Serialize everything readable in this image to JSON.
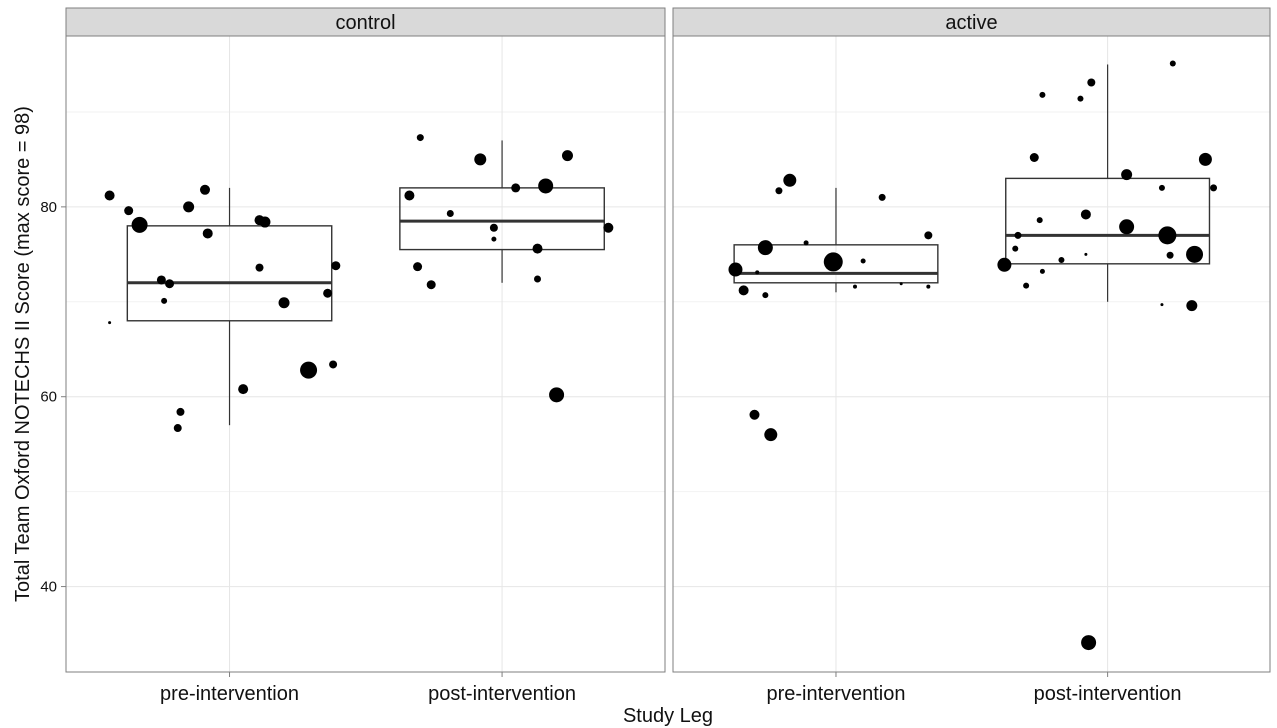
{
  "chart_data": {
    "type": "box",
    "xlabel": "Study Leg",
    "ylabel": "Total Team Oxford NOTECHS II Score (max score = 98)",
    "ylim": [
      31,
      98
    ],
    "yticks": [
      40,
      60,
      80
    ],
    "grid": true,
    "categories": [
      "pre-intervention",
      "post-intervention"
    ],
    "panels": [
      {
        "name": "control",
        "boxes": [
          {
            "category": "pre-intervention",
            "whisker_low": 57,
            "q1": 68,
            "median": 72,
            "q3": 78,
            "whisker_high": 82,
            "points": [
              {
                "dx": -0.44,
                "y": 81.2,
                "r": 5
              },
              {
                "dx": -0.37,
                "y": 79.6,
                "r": 4.5
              },
              {
                "dx": -0.33,
                "y": 78.1,
                "r": 8
              },
              {
                "dx": -0.25,
                "y": 72.3,
                "r": 4.5
              },
              {
                "dx": -0.24,
                "y": 70.1,
                "r": 3
              },
              {
                "dx": -0.22,
                "y": 71.9,
                "r": 4.5
              },
              {
                "dx": -0.15,
                "y": 80.0,
                "r": 5.5
              },
              {
                "dx": -0.09,
                "y": 81.8,
                "r": 5
              },
              {
                "dx": -0.08,
                "y": 77.2,
                "r": 5
              },
              {
                "dx": -0.18,
                "y": 58.4,
                "r": 4
              },
              {
                "dx": -0.19,
                "y": 56.7,
                "r": 4
              },
              {
                "dx": -0.44,
                "y": 67.8,
                "r": 1.5
              },
              {
                "dx": 0.05,
                "y": 60.8,
                "r": 5
              },
              {
                "dx": 0.11,
                "y": 73.6,
                "r": 4
              },
              {
                "dx": 0.11,
                "y": 78.6,
                "r": 5
              },
              {
                "dx": 0.13,
                "y": 78.4,
                "r": 5.5
              },
              {
                "dx": 0.2,
                "y": 69.9,
                "r": 5.5
              },
              {
                "dx": 0.29,
                "y": 62.8,
                "r": 8.5
              },
              {
                "dx": 0.36,
                "y": 70.9,
                "r": 4.5
              },
              {
                "dx": 0.38,
                "y": 63.4,
                "r": 4
              },
              {
                "dx": 0.39,
                "y": 73.8,
                "r": 4.5
              }
            ]
          },
          {
            "category": "post-intervention",
            "whisker_low": 72,
            "q1": 75.5,
            "median": 78.5,
            "q3": 82,
            "whisker_high": 87,
            "points": [
              {
                "dx": -0.34,
                "y": 81.2,
                "r": 5
              },
              {
                "dx": -0.31,
                "y": 73.7,
                "r": 4.5
              },
              {
                "dx": -0.3,
                "y": 87.3,
                "r": 3.5
              },
              {
                "dx": -0.26,
                "y": 71.8,
                "r": 4.5
              },
              {
                "dx": -0.19,
                "y": 79.3,
                "r": 3.5
              },
              {
                "dx": -0.08,
                "y": 85.0,
                "r": 6
              },
              {
                "dx": -0.03,
                "y": 77.8,
                "r": 4
              },
              {
                "dx": -0.03,
                "y": 76.6,
                "r": 2.5
              },
              {
                "dx": 0.05,
                "y": 82.0,
                "r": 4.5
              },
              {
                "dx": 0.13,
                "y": 75.6,
                "r": 5
              },
              {
                "dx": 0.13,
                "y": 72.4,
                "r": 3.5
              },
              {
                "dx": 0.16,
                "y": 82.2,
                "r": 7.5
              },
              {
                "dx": 0.2,
                "y": 60.2,
                "r": 7.5
              },
              {
                "dx": 0.24,
                "y": 85.4,
                "r": 5.5
              },
              {
                "dx": 0.39,
                "y": 77.8,
                "r": 5
              }
            ]
          }
        ]
      },
      {
        "name": "active",
        "boxes": [
          {
            "category": "pre-intervention",
            "whisker_low": 71,
            "q1": 72,
            "median": 73,
            "q3": 76,
            "whisker_high": 82,
            "points": [
              {
                "dx": -0.37,
                "y": 73.4,
                "r": 7
              },
              {
                "dx": -0.34,
                "y": 71.2,
                "r": 5
              },
              {
                "dx": -0.3,
                "y": 58.1,
                "r": 5
              },
              {
                "dx": -0.29,
                "y": 73.1,
                "r": 2
              },
              {
                "dx": -0.26,
                "y": 75.7,
                "r": 7.5
              },
              {
                "dx": -0.26,
                "y": 70.7,
                "r": 3
              },
              {
                "dx": -0.24,
                "y": 56.0,
                "r": 6.5
              },
              {
                "dx": -0.21,
                "y": 81.7,
                "r": 3.5
              },
              {
                "dx": -0.17,
                "y": 82.8,
                "r": 6.5
              },
              {
                "dx": -0.11,
                "y": 76.2,
                "r": 2.5
              },
              {
                "dx": -0.01,
                "y": 74.2,
                "r": 9.5
              },
              {
                "dx": 0.1,
                "y": 74.3,
                "r": 2.5
              },
              {
                "dx": 0.07,
                "y": 71.6,
                "r": 2
              },
              {
                "dx": 0.17,
                "y": 81.0,
                "r": 3.5
              },
              {
                "dx": 0.24,
                "y": 71.9,
                "r": 1.5
              },
              {
                "dx": 0.34,
                "y": 77.0,
                "r": 4
              },
              {
                "dx": 0.34,
                "y": 71.6,
                "r": 2
              }
            ]
          },
          {
            "category": "post-intervention",
            "whisker_low": 70,
            "q1": 74,
            "median": 77,
            "q3": 83,
            "whisker_high": 95,
            "points": [
              {
                "dx": -0.38,
                "y": 73.9,
                "r": 7
              },
              {
                "dx": -0.34,
                "y": 75.6,
                "r": 3
              },
              {
                "dx": -0.33,
                "y": 77.0,
                "r": 3.5
              },
              {
                "dx": -0.3,
                "y": 71.7,
                "r": 3
              },
              {
                "dx": -0.27,
                "y": 85.2,
                "r": 4.5
              },
              {
                "dx": -0.25,
                "y": 78.6,
                "r": 3
              },
              {
                "dx": -0.24,
                "y": 73.2,
                "r": 2.5
              },
              {
                "dx": -0.24,
                "y": 91.8,
                "r": 3
              },
              {
                "dx": -0.17,
                "y": 74.4,
                "r": 3
              },
              {
                "dx": -0.1,
                "y": 91.4,
                "r": 3
              },
              {
                "dx": -0.08,
                "y": 79.2,
                "r": 5
              },
              {
                "dx": -0.08,
                "y": 75.0,
                "r": 1.5
              },
              {
                "dx": -0.06,
                "y": 93.1,
                "r": 4
              },
              {
                "dx": -0.07,
                "y": 34.1,
                "r": 7.5
              },
              {
                "dx": 0.07,
                "y": 83.4,
                "r": 5.5
              },
              {
                "dx": 0.07,
                "y": 77.9,
                "r": 7.5
              },
              {
                "dx": 0.2,
                "y": 82.0,
                "r": 3
              },
              {
                "dx": 0.2,
                "y": 69.7,
                "r": 1.5
              },
              {
                "dx": 0.22,
                "y": 77.0,
                "r": 9
              },
              {
                "dx": 0.23,
                "y": 74.9,
                "r": 3.5
              },
              {
                "dx": 0.24,
                "y": 95.1,
                "r": 3
              },
              {
                "dx": 0.31,
                "y": 69.6,
                "r": 5.5
              },
              {
                "dx": 0.32,
                "y": 75.0,
                "r": 8.5
              },
              {
                "dx": 0.36,
                "y": 85.0,
                "r": 6.5
              },
              {
                "dx": 0.39,
                "y": 82.0,
                "r": 3.5
              }
            ]
          }
        ]
      }
    ]
  }
}
